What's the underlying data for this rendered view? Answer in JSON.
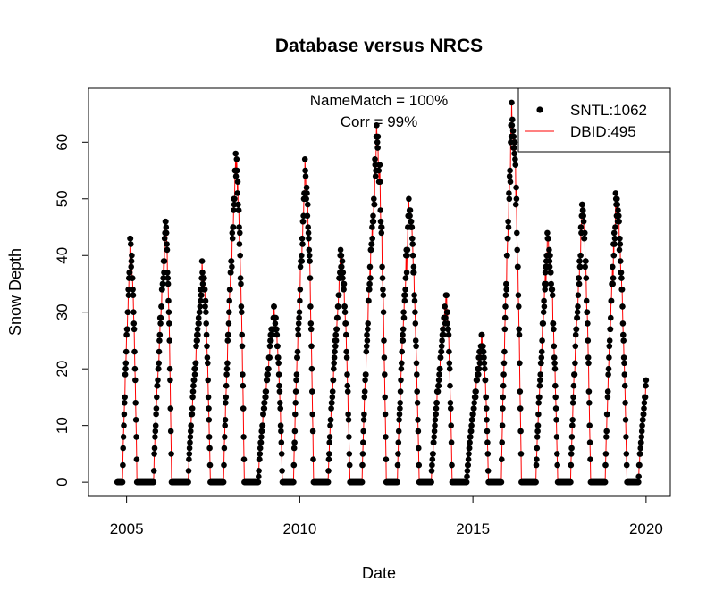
{
  "chart_data": {
    "type": "scatter",
    "title": "Database versus NRCS",
    "xlabel": "Date",
    "ylabel": "Snow Depth",
    "xlim": [
      2003.9,
      2020.7
    ],
    "ylim": [
      -2.5,
      69.5
    ],
    "x_ticks": [
      2005,
      2010,
      2015,
      2020
    ],
    "x_tick_labels": [
      "2005",
      "2010",
      "2015",
      "2020"
    ],
    "y_ticks": [
      0,
      10,
      20,
      30,
      40,
      50,
      60
    ],
    "y_tick_labels": [
      "0",
      "10",
      "20",
      "30",
      "40",
      "50",
      "60"
    ],
    "annotations": [
      "NameMatch = 100%",
      "Corr = 99%"
    ],
    "legend": {
      "position": "top-right",
      "entries": [
        "SNTL:1062",
        "DBID:495"
      ]
    },
    "colors": {
      "points": "#000000",
      "line": "#ff0000"
    },
    "series": [
      {
        "name": "SNTL:1062",
        "style": "points",
        "seasons": [
          {
            "start": 2004.88,
            "peak_x": 2005.1,
            "peak": 43,
            "end": 2005.3
          },
          {
            "start": 2005.78,
            "peak_x": 2006.12,
            "peak": 46,
            "end": 2006.3
          },
          {
            "start": 2006.78,
            "peak_x": 2007.18,
            "peak": 39,
            "end": 2007.42
          },
          {
            "start": 2007.8,
            "peak_x": 2008.15,
            "peak": 58,
            "end": 2008.4
          },
          {
            "start": 2008.8,
            "peak_x": 2009.25,
            "peak": 31,
            "end": 2009.5
          },
          {
            "start": 2009.82,
            "peak_x": 2010.15,
            "peak": 57,
            "end": 2010.4
          },
          {
            "start": 2010.82,
            "peak_x": 2011.18,
            "peak": 41,
            "end": 2011.45
          },
          {
            "start": 2011.8,
            "peak_x": 2012.22,
            "peak": 63,
            "end": 2012.5
          },
          {
            "start": 2012.82,
            "peak_x": 2013.15,
            "peak": 50,
            "end": 2013.45
          },
          {
            "start": 2013.8,
            "peak_x": 2014.22,
            "peak": 33,
            "end": 2014.4
          },
          {
            "start": 2014.82,
            "peak_x": 2015.25,
            "peak": 26,
            "end": 2015.45
          },
          {
            "start": 2015.82,
            "peak_x": 2016.12,
            "peak": 67,
            "end": 2016.4
          },
          {
            "start": 2016.82,
            "peak_x": 2017.15,
            "peak": 44,
            "end": 2017.45
          },
          {
            "start": 2017.82,
            "peak_x": 2018.15,
            "peak": 49,
            "end": 2018.4
          },
          {
            "start": 2018.82,
            "peak_x": 2019.12,
            "peak": 51,
            "end": 2019.45
          },
          {
            "start": 2019.78,
            "peak_x": 2020.0,
            "peak": 18,
            "end": 2020.0
          }
        ]
      },
      {
        "name": "DBID:495",
        "style": "line"
      }
    ]
  }
}
